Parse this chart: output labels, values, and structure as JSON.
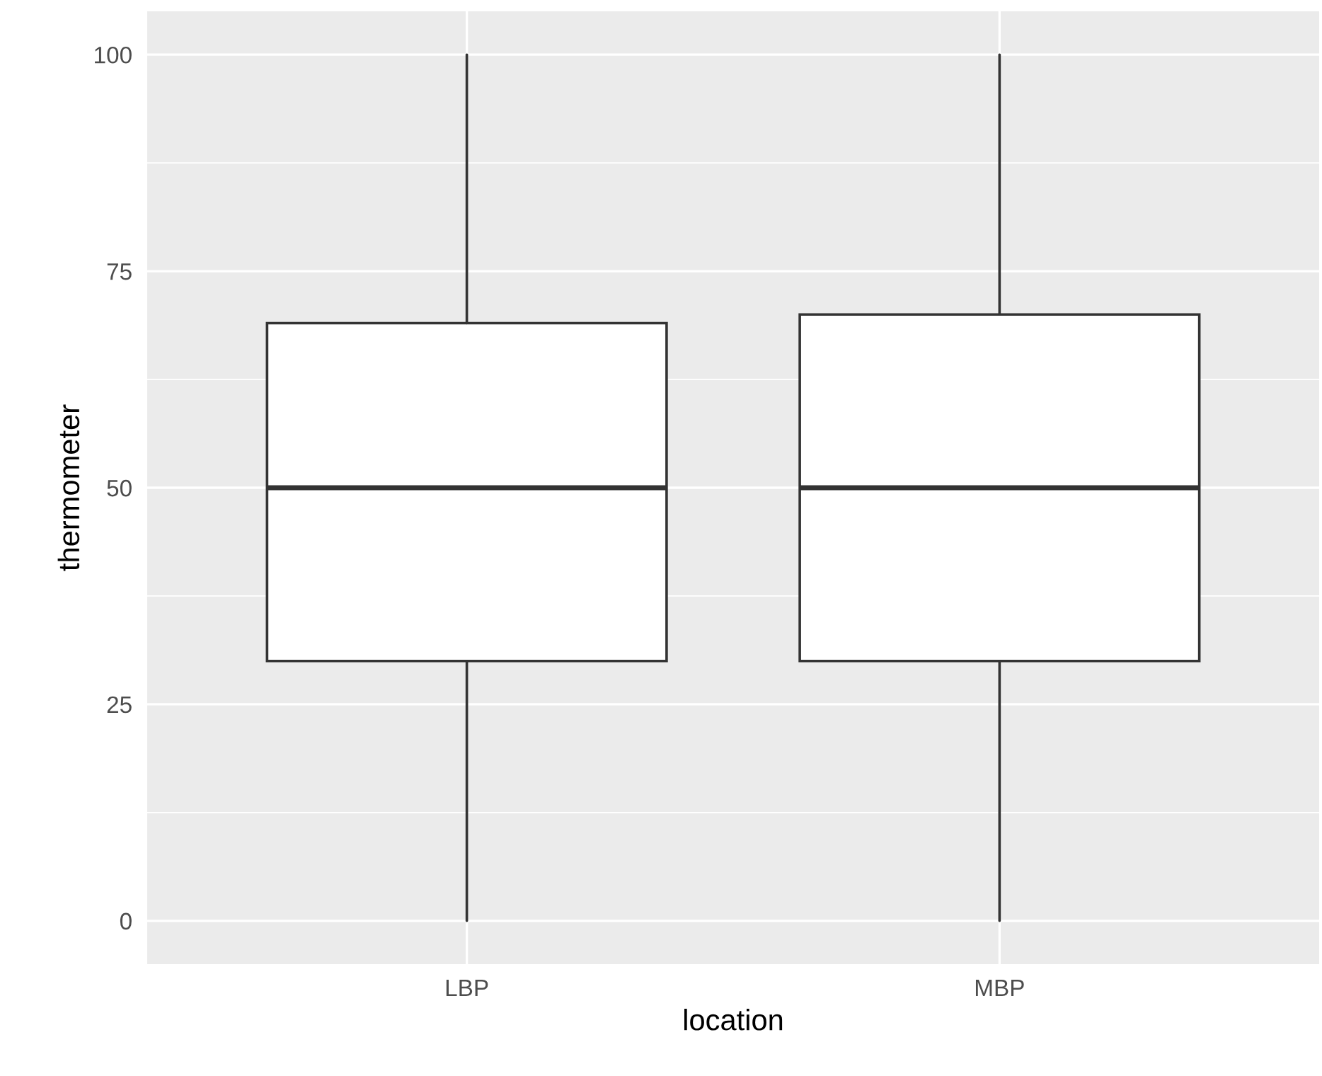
{
  "chart_data": {
    "type": "box",
    "xlabel": "location",
    "ylabel": "thermometer",
    "categories": [
      "LBP",
      "MBP"
    ],
    "boxes": [
      {
        "low": 0,
        "q1": 30,
        "median": 50,
        "q3": 69,
        "high": 100
      },
      {
        "low": 0,
        "q1": 30,
        "median": 50,
        "q3": 70,
        "high": 100
      }
    ],
    "ylim": [
      -5,
      105
    ],
    "yticks": [
      0,
      25,
      50,
      75,
      100
    ],
    "grid": true
  }
}
